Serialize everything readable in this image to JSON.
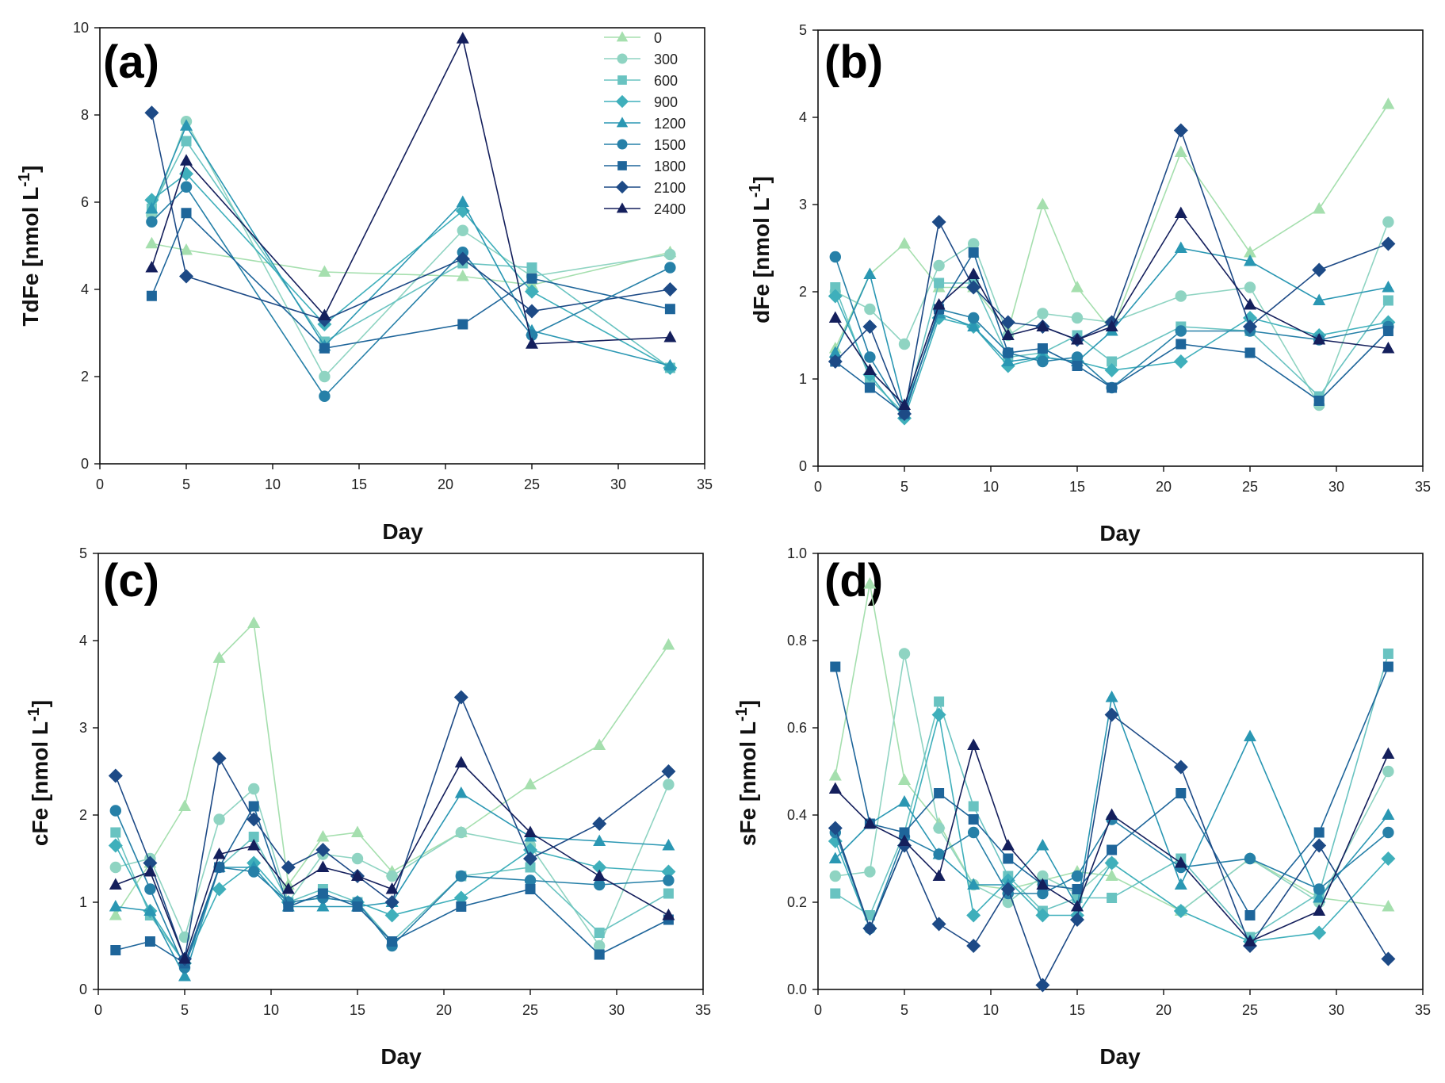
{
  "colors": {
    "0": "#a5dfae",
    "300": "#8fd4c2",
    "600": "#69c3c1",
    "900": "#3fafbb",
    "1200": "#2a97b3",
    "1500": "#2680a8",
    "1800": "#1e659a",
    "2100": "#1d4a86",
    "2400": "#141f5c"
  },
  "markers": {
    "0": "triangle",
    "300": "circle",
    "600": "square",
    "900": "diamond",
    "1200": "triangle",
    "1500": "circle",
    "1800": "square",
    "2100": "diamond",
    "2400": "triangle"
  },
  "chart_data": [
    {
      "panel": "(a)",
      "type": "line",
      "xlabel": "Day",
      "ylabel": "TdFe [nmol L-1]",
      "xlim": [
        0,
        35
      ],
      "ylim": [
        0,
        10
      ],
      "xticks": [
        "0",
        "5",
        "10",
        "15",
        "20",
        "25",
        "30",
        "35"
      ],
      "yticks": [
        "0",
        "2",
        "4",
        "6",
        "8",
        "10"
      ],
      "legend": [
        "0",
        "300",
        "600",
        "900",
        "1200",
        "1500",
        "1800",
        "2100",
        "2400"
      ],
      "legend_position": "top-right",
      "x": [
        3,
        5,
        13,
        21,
        25,
        33
      ],
      "series": [
        {
          "name": "0",
          "values": [
            5.05,
            4.9,
            4.4,
            4.3,
            4.1,
            4.85
          ]
        },
        {
          "name": "300",
          "values": [
            5.7,
            7.85,
            2.0,
            5.35,
            4.3,
            4.8
          ]
        },
        {
          "name": "600",
          "values": [
            5.85,
            7.4,
            2.8,
            4.6,
            4.5,
            2.2
          ]
        },
        {
          "name": "900",
          "values": [
            6.05,
            6.65,
            3.2,
            5.8,
            3.95,
            2.2
          ]
        },
        {
          "name": "1200",
          "values": [
            5.85,
            7.75,
            2.7,
            6.0,
            3.05,
            2.25
          ]
        },
        {
          "name": "1500",
          "values": [
            5.55,
            6.35,
            1.55,
            4.85,
            2.95,
            4.5
          ]
        },
        {
          "name": "1800",
          "values": [
            3.85,
            5.75,
            2.65,
            3.2,
            4.25,
            3.55
          ]
        },
        {
          "name": "2100",
          "values": [
            8.05,
            4.3,
            3.3,
            4.7,
            3.5,
            4.0
          ]
        },
        {
          "name": "2400",
          "values": [
            4.5,
            6.95,
            3.4,
            9.75,
            2.75,
            2.9
          ]
        }
      ]
    },
    {
      "panel": "(b)",
      "type": "line",
      "xlabel": "Day",
      "ylabel": "dFe [nmol L-1]",
      "xlim": [
        0,
        35
      ],
      "ylim": [
        0,
        5
      ],
      "xticks": [
        "0",
        "5",
        "10",
        "15",
        "20",
        "25",
        "30",
        "35"
      ],
      "yticks": [
        "0",
        "1",
        "2",
        "3",
        "4",
        "5"
      ],
      "x": [
        1,
        3,
        5,
        7,
        9,
        11,
        13,
        15,
        17,
        21,
        25,
        29,
        33
      ],
      "series": [
        {
          "name": "0",
          "values": [
            1.35,
            2.2,
            2.55,
            2.05,
            2.05,
            1.55,
            3.0,
            2.05,
            1.55,
            3.6,
            2.45,
            2.95,
            4.15
          ]
        },
        {
          "name": "300",
          "values": [
            2.0,
            1.8,
            1.4,
            2.3,
            2.55,
            1.5,
            1.75,
            1.7,
            1.65,
            1.95,
            2.05,
            0.7,
            2.8
          ]
        },
        {
          "name": "600",
          "values": [
            2.05,
            1.0,
            0.6,
            2.1,
            2.1,
            1.25,
            1.3,
            1.5,
            1.2,
            1.6,
            1.55,
            0.8,
            1.9
          ]
        },
        {
          "name": "900",
          "values": [
            1.95,
            1.05,
            0.55,
            1.7,
            1.6,
            1.15,
            1.25,
            1.2,
            1.1,
            1.2,
            1.7,
            1.5,
            1.65
          ]
        },
        {
          "name": "1200",
          "values": [
            1.3,
            2.2,
            0.65,
            1.75,
            1.6,
            1.2,
            1.25,
            1.2,
            1.55,
            2.5,
            2.35,
            1.9,
            2.05
          ]
        },
        {
          "name": "1500",
          "values": [
            2.4,
            1.25,
            0.6,
            1.8,
            1.7,
            1.3,
            1.2,
            1.25,
            0.9,
            1.55,
            1.55,
            1.45,
            1.6
          ]
        },
        {
          "name": "1800",
          "values": [
            1.2,
            0.9,
            0.6,
            1.8,
            2.45,
            1.3,
            1.35,
            1.15,
            0.9,
            1.4,
            1.3,
            0.75,
            1.55
          ]
        },
        {
          "name": "2100",
          "values": [
            1.2,
            1.6,
            0.6,
            2.8,
            2.05,
            1.65,
            1.6,
            1.45,
            1.65,
            3.85,
            1.6,
            2.25,
            2.55
          ]
        },
        {
          "name": "2400",
          "values": [
            1.7,
            1.1,
            0.7,
            1.85,
            2.2,
            1.5,
            1.6,
            1.45,
            1.6,
            2.9,
            1.85,
            1.45,
            1.35
          ]
        }
      ]
    },
    {
      "panel": "(c)",
      "type": "line",
      "xlabel": "Day",
      "ylabel": "cFe [nmol L-1]",
      "xlim": [
        0,
        35
      ],
      "ylim": [
        0,
        5
      ],
      "xticks": [
        "0",
        "5",
        "10",
        "15",
        "20",
        "25",
        "30",
        "35"
      ],
      "yticks": [
        "0",
        "1",
        "2",
        "3",
        "4",
        "5"
      ],
      "x": [
        1,
        3,
        5,
        7,
        9,
        11,
        13,
        15,
        17,
        21,
        25,
        29,
        33
      ],
      "series": [
        {
          "name": "0",
          "values": [
            0.85,
            1.45,
            2.1,
            3.8,
            4.2,
            1.2,
            1.75,
            1.8,
            1.35,
            1.8,
            2.35,
            2.8,
            3.95
          ]
        },
        {
          "name": "300",
          "values": [
            1.4,
            1.5,
            0.6,
            1.95,
            2.3,
            1.0,
            1.55,
            1.5,
            1.3,
            1.8,
            1.65,
            0.5,
            2.35
          ]
        },
        {
          "name": "600",
          "values": [
            1.8,
            0.85,
            0.3,
            1.4,
            1.75,
            1.0,
            1.15,
            1.0,
            0.55,
            1.3,
            1.4,
            0.65,
            1.1
          ]
        },
        {
          "name": "900",
          "values": [
            1.65,
            0.9,
            0.3,
            1.15,
            1.45,
            1.0,
            1.05,
            1.0,
            0.85,
            1.05,
            1.6,
            1.4,
            1.35
          ]
        },
        {
          "name": "1200",
          "values": [
            0.95,
            0.9,
            0.15,
            1.4,
            1.4,
            0.95,
            0.95,
            0.95,
            1.0,
            2.25,
            1.75,
            1.7,
            1.65
          ]
        },
        {
          "name": "1500",
          "values": [
            2.05,
            1.15,
            0.25,
            1.4,
            1.35,
            1.0,
            1.05,
            1.0,
            0.5,
            1.3,
            1.25,
            1.2,
            1.25
          ]
        },
        {
          "name": "1800",
          "values": [
            0.45,
            0.55,
            0.3,
            1.4,
            2.1,
            0.95,
            1.1,
            0.95,
            0.55,
            0.95,
            1.15,
            0.4,
            0.8
          ]
        },
        {
          "name": "2100",
          "values": [
            2.45,
            1.45,
            0.35,
            2.65,
            1.95,
            1.4,
            1.6,
            1.3,
            1.0,
            3.35,
            1.5,
            1.9,
            2.5
          ]
        },
        {
          "name": "2400",
          "values": [
            1.2,
            1.35,
            0.35,
            1.55,
            1.65,
            1.15,
            1.4,
            1.3,
            1.15,
            2.6,
            1.8,
            1.3,
            0.85
          ]
        }
      ]
    },
    {
      "panel": "(d)",
      "type": "line",
      "xlabel": "Day",
      "ylabel": "sFe [nmol L-1]",
      "xlim": [
        0,
        35
      ],
      "ylim": [
        0,
        1
      ],
      "xticks": [
        "0",
        "5",
        "10",
        "15",
        "20",
        "25",
        "30",
        "35"
      ],
      "yticks": [
        "0.0",
        "0.2",
        "0.4",
        "0.6",
        "0.8",
        "1.0"
      ],
      "x": [
        1,
        3,
        5,
        7,
        9,
        11,
        13,
        15,
        17,
        21,
        25,
        29,
        33
      ],
      "series": [
        {
          "name": "0",
          "values": [
            0.49,
            0.93,
            0.48,
            0.38,
            0.24,
            0.23,
            0.25,
            0.27,
            0.26,
            0.18,
            0.3,
            0.21,
            0.19
          ]
        },
        {
          "name": "300",
          "values": [
            0.26,
            0.27,
            0.77,
            0.37,
            0.24,
            0.2,
            0.26,
            0.22,
            0.29,
            0.18,
            0.3,
            0.2,
            0.5
          ]
        },
        {
          "name": "600",
          "values": [
            0.22,
            0.17,
            0.36,
            0.66,
            0.42,
            0.26,
            0.18,
            0.21,
            0.21,
            0.3,
            0.12,
            0.22,
            0.77
          ]
        },
        {
          "name": "900",
          "values": [
            0.34,
            0.14,
            0.33,
            0.63,
            0.17,
            0.25,
            0.17,
            0.17,
            0.29,
            0.18,
            0.11,
            0.13,
            0.3
          ]
        },
        {
          "name": "1200",
          "values": [
            0.3,
            0.38,
            0.43,
            0.31,
            0.24,
            0.24,
            0.33,
            0.19,
            0.67,
            0.24,
            0.58,
            0.21,
            0.4
          ]
        },
        {
          "name": "1500",
          "values": [
            0.36,
            0.14,
            0.35,
            0.31,
            0.36,
            0.22,
            0.22,
            0.26,
            0.39,
            0.28,
            0.3,
            0.23,
            0.36
          ]
        },
        {
          "name": "1800",
          "values": [
            0.74,
            0.38,
            0.36,
            0.45,
            0.39,
            0.3,
            0.24,
            0.23,
            0.32,
            0.45,
            0.17,
            0.36,
            0.74
          ]
        },
        {
          "name": "2100",
          "values": [
            0.37,
            0.14,
            0.33,
            0.15,
            0.1,
            0.23,
            0.01,
            0.16,
            0.63,
            0.51,
            0.1,
            0.33,
            0.07
          ]
        },
        {
          "name": "2400",
          "values": [
            0.46,
            0.38,
            0.34,
            0.26,
            0.56,
            0.33,
            0.24,
            0.19,
            0.4,
            0.29,
            0.11,
            0.18,
            0.54
          ]
        }
      ]
    }
  ]
}
